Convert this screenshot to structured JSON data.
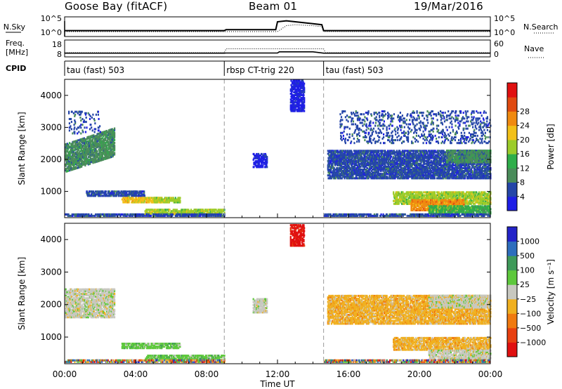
{
  "header": {
    "station": "Goose Bay (fitACF)",
    "beam": "Beam 01",
    "date": "19/Mar/2016"
  },
  "chart_data": [
    {
      "type": "line",
      "title": "",
      "left_label": "N.Sky",
      "right_label": "N.Search",
      "left_ticks": [
        "10^5",
        "10^0"
      ],
      "right_ticks": [
        "10^5",
        "10^0"
      ],
      "series": [
        {
          "name": "N.Sky",
          "style": "solid",
          "x": [
            0,
            1,
            2,
            3,
            4,
            5,
            6,
            7,
            8,
            9,
            9.1,
            10,
            11,
            11.9,
            12,
            12.5,
            13,
            13.5,
            14,
            14.5,
            14.6,
            15,
            16,
            17,
            18,
            19,
            20,
            21,
            22,
            23,
            24
          ],
          "y": [
            0.3,
            0.3,
            0.3,
            0.3,
            0.3,
            0.3,
            0.3,
            0.3,
            0.3,
            0.3,
            0.35,
            0.35,
            0.35,
            0.35,
            0.75,
            0.8,
            0.75,
            0.7,
            0.65,
            0.6,
            0.3,
            0.3,
            0.3,
            0.3,
            0.3,
            0.3,
            0.3,
            0.3,
            0.3,
            0.3,
            0.3
          ]
        },
        {
          "name": "N.Search",
          "style": "dotted",
          "x": [
            0,
            9,
            9.1,
            12,
            12.5,
            13,
            14,
            14.5,
            14.6,
            24
          ],
          "y": [
            0.25,
            0.25,
            0.25,
            0.25,
            0.55,
            0.6,
            0.55,
            0.5,
            0.25,
            0.25
          ]
        }
      ],
      "xlim": [
        0,
        24
      ]
    },
    {
      "type": "line",
      "title": "",
      "left_label": "Freq. [MHz]",
      "right_label": "Nave",
      "left_ticks": [
        "18",
        "8"
      ],
      "right_ticks": [
        "60",
        "0"
      ],
      "series": [
        {
          "name": "Freq.",
          "style": "solid",
          "x": [
            0,
            9,
            9.1,
            12,
            12.1,
            14,
            14.6,
            24
          ],
          "y": [
            10.2,
            10.2,
            10.3,
            10.3,
            11.0,
            11.0,
            10.2,
            10.2
          ]
        },
        {
          "name": "Nave",
          "style": "dotted",
          "x": [
            0,
            9,
            9.1,
            14.6,
            14.7,
            24
          ],
          "y": [
            10.5,
            10.5,
            12.8,
            12.8,
            10.5,
            10.5
          ]
        }
      ],
      "xlim": [
        0,
        24
      ]
    },
    {
      "type": "table",
      "label": "CPID",
      "segments": [
        {
          "start": 0,
          "end": 9.0,
          "name": "tau (fast) 503"
        },
        {
          "start": 9.0,
          "end": 14.6,
          "name": "rbsp CT-trig 220"
        },
        {
          "start": 14.6,
          "end": 24,
          "name": "tau (fast) 503"
        }
      ]
    },
    {
      "type": "heatmap",
      "title": "",
      "ylabel": "Slant Range [km]",
      "xlabel": "",
      "xlim": [
        0,
        24
      ],
      "ylim": [
        180,
        4500
      ],
      "yticks": [
        1000,
        2000,
        3000,
        4000
      ],
      "xticks": [
        "00:00",
        "04:00",
        "08:00",
        "12:00",
        "16:00",
        "20:00",
        "00:00"
      ],
      "colorbar": {
        "label": "Power [dB]",
        "ticks": [
          "4",
          "8",
          "12",
          "16",
          "20",
          "24",
          "28"
        ],
        "colors": [
          "#1e1ee6",
          "#2546a8",
          "#4a8c5a",
          "#2fae4a",
          "#9ccc2a",
          "#f2c018",
          "#f08a10",
          "#e04a10",
          "#e01010"
        ]
      },
      "regions": [
        {
          "x0": 0.0,
          "x1": 2.8,
          "y0": 1600,
          "y1": 2500,
          "slope": 300,
          "value": 2
        },
        {
          "x0": 1.2,
          "x1": 4.5,
          "y0": 850,
          "y1": 1000,
          "value": 1
        },
        {
          "x0": 3.2,
          "x1": 5.5,
          "y0": 650,
          "y1": 800,
          "value": 5
        },
        {
          "x0": 5.0,
          "x1": 6.5,
          "y0": 650,
          "y1": 800,
          "value": 4
        },
        {
          "x0": 4.5,
          "x1": 9.0,
          "y0": 280,
          "y1": 450,
          "value": 4
        },
        {
          "x0": 0.0,
          "x1": 9.0,
          "y0": 180,
          "y1": 280,
          "value": 1
        },
        {
          "x0": 10.6,
          "x1": 11.4,
          "y0": 1750,
          "y1": 2200,
          "value": 0
        },
        {
          "x0": 12.7,
          "x1": 13.5,
          "y0": 3500,
          "y1": 4450,
          "value": 0
        },
        {
          "x0": 14.8,
          "x1": 24.0,
          "y0": 1400,
          "y1": 2300,
          "slope": 0,
          "value": 1
        },
        {
          "x0": 21.5,
          "x1": 24.0,
          "y0": 1900,
          "y1": 2300,
          "value": 2
        },
        {
          "x0": 18.5,
          "x1": 24.0,
          "y0": 600,
          "y1": 1000,
          "value": 4
        },
        {
          "x0": 19.5,
          "x1": 22.5,
          "y0": 400,
          "y1": 750,
          "value": 6
        },
        {
          "x0": 20.5,
          "x1": 24.0,
          "y0": 300,
          "y1": 550,
          "value": 3
        },
        {
          "x0": 14.6,
          "x1": 24.0,
          "y0": 180,
          "y1": 280,
          "value": 1
        },
        {
          "x0": 15.5,
          "x1": 24.0,
          "y0": 2500,
          "y1": 3500,
          "value": 1,
          "sparse": true
        },
        {
          "x0": 0.2,
          "x1": 2.0,
          "y0": 2800,
          "y1": 3500,
          "value": 1,
          "sparse": true
        }
      ]
    },
    {
      "type": "heatmap",
      "title": "",
      "ylabel": "Slant Range [km]",
      "xlabel": "Time UT",
      "xlim": [
        0,
        24
      ],
      "ylim": [
        180,
        4500
      ],
      "yticks": [
        1000,
        2000,
        3000,
        4000
      ],
      "xticks": [
        "00:00",
        "04:00",
        "08:00",
        "12:00",
        "16:00",
        "20:00",
        "00:00"
      ],
      "colorbar": {
        "label": "Velocity [m s⁻¹]",
        "ticks": [
          "1000",
          "500",
          "100",
          "25",
          "−25",
          "−100",
          "−500",
          "−1000"
        ],
        "colors": [
          "#2323c8",
          "#2e6ebd",
          "#3f9a5a",
          "#5ec83c",
          "#c8c8c0",
          "#f0b020",
          "#f07a10",
          "#e84010",
          "#e01010"
        ]
      },
      "regions": [
        {
          "x0": 0.0,
          "x1": 2.8,
          "y0": 1600,
          "y1": 2500,
          "value": 4
        },
        {
          "x0": 3.2,
          "x1": 6.5,
          "y0": 650,
          "y1": 800,
          "value": 3
        },
        {
          "x0": 4.5,
          "x1": 9.0,
          "y0": 280,
          "y1": 450,
          "value": 3
        },
        {
          "x0": 0.0,
          "x1": 9.0,
          "y0": 180,
          "y1": 280,
          "value": 3,
          "mixed": true
        },
        {
          "x0": 10.6,
          "x1": 11.4,
          "y0": 1750,
          "y1": 2200,
          "value": 4
        },
        {
          "x0": 12.7,
          "x1": 13.5,
          "y0": 3800,
          "y1": 4450,
          "value": 8
        },
        {
          "x0": 14.8,
          "x1": 24.0,
          "y0": 1400,
          "y1": 2300,
          "value": 5
        },
        {
          "x0": 20.5,
          "x1": 24.0,
          "y0": 1900,
          "y1": 2300,
          "value": 4
        },
        {
          "x0": 18.5,
          "x1": 24.0,
          "y0": 600,
          "y1": 1000,
          "value": 5
        },
        {
          "x0": 20.5,
          "x1": 24.0,
          "y0": 300,
          "y1": 600,
          "value": 4
        },
        {
          "x0": 14.6,
          "x1": 24.0,
          "y0": 180,
          "y1": 280,
          "value": 3,
          "mixed": true
        }
      ]
    }
  ]
}
